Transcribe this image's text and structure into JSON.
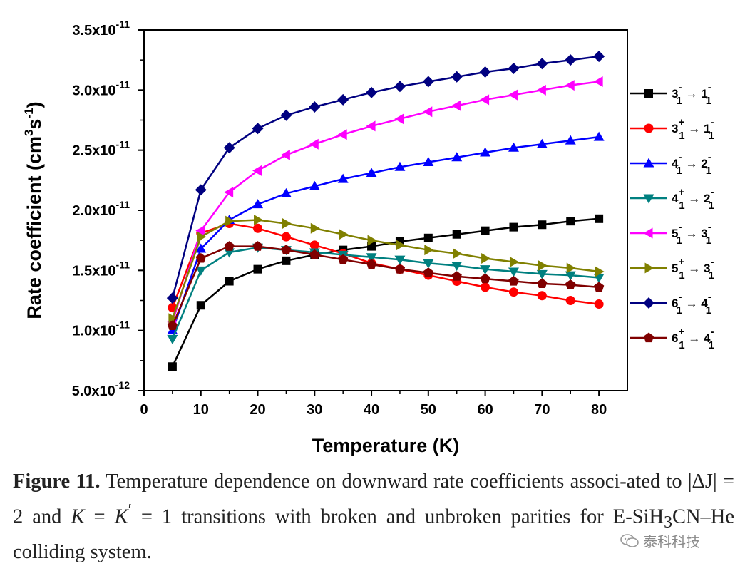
{
  "chart_data": {
    "type": "line",
    "xlabel": "Temperature (K)",
    "ylabel": "Rate coefficient (cm3s-1)",
    "xlim": [
      0,
      85
    ],
    "ylim": [
      5e-12,
      3.5e-11
    ],
    "x_ticks": [
      0,
      10,
      20,
      30,
      40,
      50,
      60,
      70,
      80
    ],
    "y_ticks": [
      {
        "value": 5e-12,
        "mant": "5.0x10",
        "exp": "-12"
      },
      {
        "value": 1e-11,
        "mant": "1.0x10",
        "exp": "-11"
      },
      {
        "value": 1.5e-11,
        "mant": "1.5x10",
        "exp": "-11"
      },
      {
        "value": 2e-11,
        "mant": "2.0x10",
        "exp": "-11"
      },
      {
        "value": 2.5e-11,
        "mant": "2.5x10",
        "exp": "-11"
      },
      {
        "value": 3e-11,
        "mant": "3.0x10",
        "exp": "-11"
      },
      {
        "value": 3.5e-11,
        "mant": "3.5x10",
        "exp": "-11"
      }
    ],
    "x": [
      5,
      10,
      15,
      20,
      25,
      30,
      35,
      40,
      45,
      50,
      55,
      60,
      65,
      70,
      75,
      80
    ],
    "legend_position": "right",
    "series": [
      {
        "label": {
          "from": "3",
          "from_sup": "-",
          "from_sub": "1",
          "to": "1",
          "to_sup": "-",
          "to_sub": "1"
        },
        "color": "#000000",
        "marker": "square",
        "values": [
          7e-12,
          1.21e-11,
          1.41e-11,
          1.51e-11,
          1.58e-11,
          1.63e-11,
          1.67e-11,
          1.7e-11,
          1.74e-11,
          1.77e-11,
          1.8e-11,
          1.83e-11,
          1.86e-11,
          1.88e-11,
          1.91e-11,
          1.93e-11
        ]
      },
      {
        "label": {
          "from": "3",
          "from_sup": "+",
          "from_sub": "1",
          "to": "1",
          "to_sup": "-",
          "to_sub": "1"
        },
        "color": "#ff0000",
        "marker": "circle",
        "values": [
          1.19e-11,
          1.81e-11,
          1.89e-11,
          1.85e-11,
          1.78e-11,
          1.71e-11,
          1.64e-11,
          1.56e-11,
          1.51e-11,
          1.46e-11,
          1.41e-11,
          1.36e-11,
          1.32e-11,
          1.29e-11,
          1.25e-11,
          1.22e-11
        ]
      },
      {
        "label": {
          "from": "4",
          "from_sup": "-",
          "from_sub": "1",
          "to": "2",
          "to_sup": "-",
          "to_sub": "1"
        },
        "color": "#0000ff",
        "marker": "triangle-up",
        "values": [
          1e-11,
          1.68e-11,
          1.92e-11,
          2.05e-11,
          2.14e-11,
          2.2e-11,
          2.26e-11,
          2.31e-11,
          2.36e-11,
          2.4e-11,
          2.44e-11,
          2.48e-11,
          2.52e-11,
          2.55e-11,
          2.58e-11,
          2.61e-11
        ]
      },
      {
        "label": {
          "from": "4",
          "from_sup": "+",
          "from_sub": "1",
          "to": "2",
          "to_sup": "-",
          "to_sub": "1"
        },
        "color": "#008080",
        "marker": "triangle-down",
        "values": [
          9.3e-12,
          1.5e-11,
          1.65e-11,
          1.69e-11,
          1.67e-11,
          1.65e-11,
          1.63e-11,
          1.61e-11,
          1.59e-11,
          1.56e-11,
          1.54e-11,
          1.51e-11,
          1.49e-11,
          1.47e-11,
          1.46e-11,
          1.44e-11
        ]
      },
      {
        "label": {
          "from": "5",
          "from_sup": "-",
          "from_sub": "1",
          "to": "3",
          "to_sup": "-",
          "to_sub": "1"
        },
        "color": "#ff00ff",
        "marker": "triangle-left",
        "values": [
          1.07e-11,
          1.83e-11,
          2.15e-11,
          2.33e-11,
          2.46e-11,
          2.55e-11,
          2.63e-11,
          2.7e-11,
          2.76e-11,
          2.82e-11,
          2.87e-11,
          2.92e-11,
          2.96e-11,
          3e-11,
          3.04e-11,
          3.07e-11
        ]
      },
      {
        "label": {
          "from": "5",
          "from_sup": "+",
          "from_sub": "1",
          "to": "3",
          "to_sup": "-",
          "to_sub": "1"
        },
        "color": "#808000",
        "marker": "triangle-right",
        "values": [
          1.1e-11,
          1.78e-11,
          1.91e-11,
          1.92e-11,
          1.89e-11,
          1.85e-11,
          1.8e-11,
          1.75e-11,
          1.71e-11,
          1.67e-11,
          1.64e-11,
          1.6e-11,
          1.57e-11,
          1.54e-11,
          1.52e-11,
          1.49e-11
        ]
      },
      {
        "label": {
          "from": "6",
          "from_sup": "-",
          "from_sub": "1",
          "to": "4",
          "to_sup": "-",
          "to_sub": "1"
        },
        "color": "#000080",
        "marker": "diamond",
        "values": [
          1.27e-11,
          2.17e-11,
          2.52e-11,
          2.68e-11,
          2.79e-11,
          2.86e-11,
          2.92e-11,
          2.98e-11,
          3.03e-11,
          3.07e-11,
          3.11e-11,
          3.15e-11,
          3.18e-11,
          3.22e-11,
          3.25e-11,
          3.28e-11
        ]
      },
      {
        "label": {
          "from": "6",
          "from_sup": "+",
          "from_sub": "1",
          "to": "4",
          "to_sup": "-",
          "to_sub": "1"
        },
        "color": "#800000",
        "marker": "pentagon",
        "values": [
          1.04e-11,
          1.6e-11,
          1.7e-11,
          1.7e-11,
          1.67e-11,
          1.63e-11,
          1.59e-11,
          1.55e-11,
          1.51e-11,
          1.48e-11,
          1.45e-11,
          1.43e-11,
          1.41e-11,
          1.39e-11,
          1.38e-11,
          1.36e-11
        ]
      }
    ]
  },
  "caption": {
    "figure_label": "Figure 11.",
    "text_1": "Temperature dependence on downward rate coefficients associ-ated to |ΔJ| = 2 and ",
    "K": "K",
    "eq": " = ",
    "K2": "K",
    "prime": "′",
    "text_2": " = 1 transitions with broken and unbroken parities for E-SiH",
    "sub3": "3",
    "text_3": "CN–He colliding system."
  },
  "watermark": {
    "text": "泰科科技",
    "icon": "wechat-icon"
  }
}
